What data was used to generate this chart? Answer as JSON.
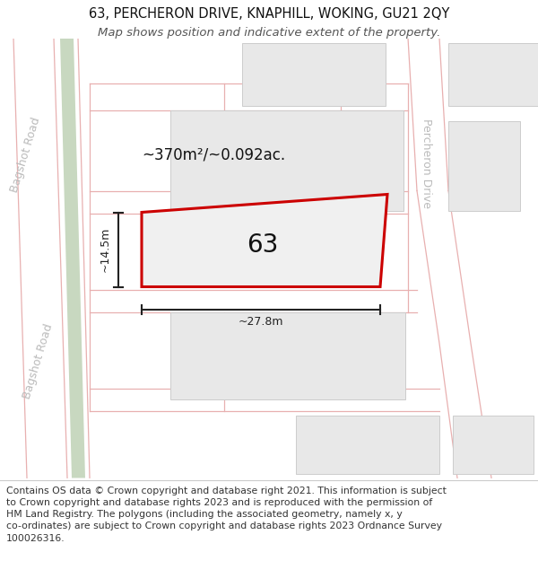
{
  "title": "63, PERCHERON DRIVE, KNAPHILL, WOKING, GU21 2QY",
  "subtitle": "Map shows position and indicative extent of the property.",
  "footer": "Contains OS data © Crown copyright and database right 2021. This information is subject to Crown copyright and database rights 2023 and is reproduced with the permission of HM Land Registry. The polygons (including the associated geometry, namely x, y co-ordinates) are subject to Crown copyright and database rights 2023 Ordnance Survey 100026316.",
  "map_bg": "#ffffff",
  "title_fontsize": 10.5,
  "subtitle_fontsize": 9.5,
  "footer_fontsize": 7.8,
  "area_label": "~370m²/~0.092ac.",
  "plot_number": "63",
  "width_label": "~27.8m",
  "height_label": "~14.5m",
  "road_line_color": "#e8b0b0",
  "building_fill": "#e8e8e8",
  "building_outline": "#cccccc",
  "green_strip_color": "#c8d8c0",
  "plot_fill": "#f0f0f0",
  "plot_outline": "#cc0000",
  "dim_line_color": "#222222",
  "text_color": "#111111",
  "road_label_color": "#cccccc",
  "bagshot_label_color": "#bbbbbb",
  "percheron_label_color": "#bbbbbb"
}
